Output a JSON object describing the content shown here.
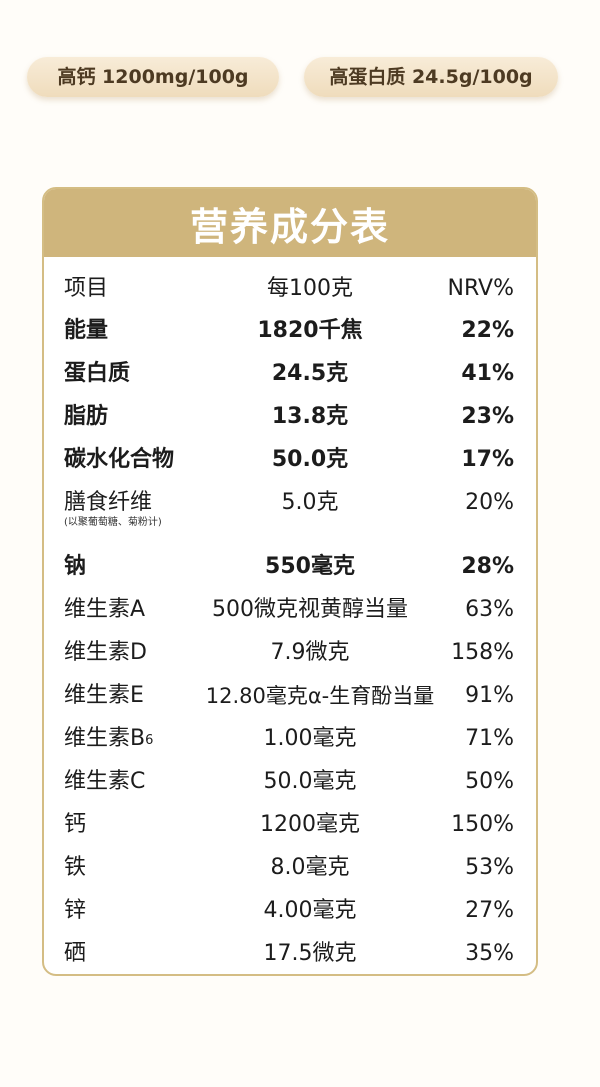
{
  "badges": {
    "calcium": "高钙 1200mg/100g",
    "protein": "高蛋白质 24.5g/100g"
  },
  "table": {
    "title": "营养成分表",
    "header": {
      "item": "项目",
      "per100": "每100克",
      "nrv": "NRV%"
    },
    "rows": [
      {
        "item": "能量",
        "value": "1820千焦",
        "nrv": "22%"
      },
      {
        "item": "蛋白质",
        "value": "24.5克",
        "nrv": "41%"
      },
      {
        "item": "脂肪",
        "value": "13.8克",
        "nrv": "23%"
      },
      {
        "item": "碳水化合物",
        "value": "50.0克",
        "nrv": "17%"
      },
      {
        "item": "膳食纤维",
        "note": "(以聚葡萄糖、菊粉计)",
        "value": "5.0克",
        "nrv": "20%"
      },
      {
        "item": "钠",
        "value": "550毫克",
        "nrv": "28%"
      },
      {
        "item": "维生素A",
        "value": "500微克视黄醇当量",
        "nrv": "63%"
      },
      {
        "item": "维生素D",
        "value": "7.9微克",
        "nrv": "158%"
      },
      {
        "item": "维生素E",
        "value": "12.80毫克α-生育酚当量",
        "nrv": "91%"
      },
      {
        "item": "维生素B",
        "item_sub": "6",
        "value": "1.00毫克",
        "nrv": "71%"
      },
      {
        "item": "维生素C",
        "value": "50.0毫克",
        "nrv": "50%"
      },
      {
        "item": "钙",
        "value": "1200毫克",
        "nrv": "150%"
      },
      {
        "item": "铁",
        "value": "8.0毫克",
        "nrv": "53%"
      },
      {
        "item": "锌",
        "value": "4.00毫克",
        "nrv": "27%"
      },
      {
        "item": "硒",
        "value": "17.5微克",
        "nrv": "35%"
      }
    ]
  }
}
